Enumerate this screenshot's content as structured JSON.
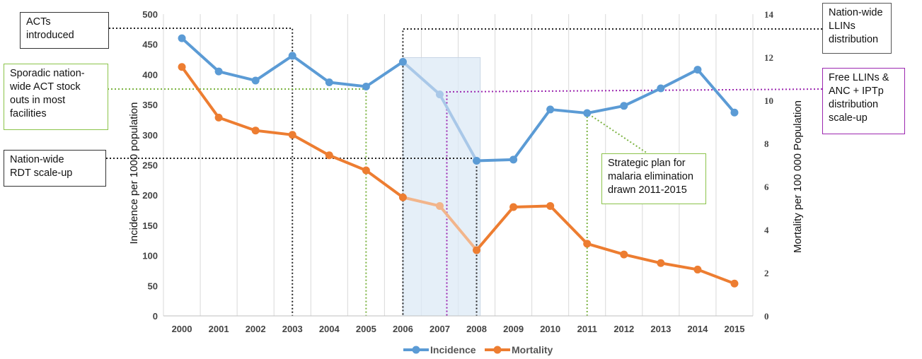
{
  "chart_data": {
    "type": "line",
    "categories": [
      "2000",
      "2001",
      "2002",
      "2003",
      "2004",
      "2005",
      "2006",
      "2007",
      "2008",
      "2009",
      "2010",
      "2011",
      "2012",
      "2013",
      "2014",
      "2015"
    ],
    "series": [
      {
        "name": "Incidence",
        "axis": "left",
        "color": "#5b9bd5",
        "values": [
          460,
          405,
          390,
          431,
          387,
          380,
          421,
          367,
          257,
          259,
          342,
          336,
          348,
          377,
          408,
          337
        ]
      },
      {
        "name": "Mortality",
        "axis": "right",
        "color": "#ed7d31",
        "values": [
          11.55,
          9.2,
          8.6,
          8.4,
          7.45,
          6.75,
          5.5,
          5.1,
          3.05,
          5.05,
          5.1,
          3.35,
          2.85,
          2.45,
          2.15,
          1.5
        ]
      }
    ],
    "ylabel": "Incidence per 1000 population",
    "y2label": "Mortality per 100 000  Population",
    "ylim": [
      0,
      500
    ],
    "y2lim": [
      0,
      14
    ],
    "yticks": [
      "0",
      "50",
      "100",
      "150",
      "200",
      "250",
      "300",
      "350",
      "400",
      "450",
      "500"
    ],
    "y2ticks": [
      "0",
      "2",
      "4",
      "6",
      "8",
      "10",
      "12",
      "14"
    ],
    "grid": "vertical",
    "legend": "bottom",
    "highlight_range": [
      "2006",
      "2008"
    ],
    "annotations": {
      "acts": [
        "ACTs",
        "introduced"
      ],
      "stock": [
        "Sporadic nation-",
        "wide ACT stock",
        "outs in most",
        "facilities"
      ],
      "rdt": [
        "Nation-wide",
        "RDT scale-up"
      ],
      "llins": [
        "Nation-wide",
        "LLINs",
        "distribution"
      ],
      "free": [
        "Free LLINs &",
        "ANC + IPTp",
        "distribution",
        "scale-up"
      ],
      "plan": [
        "Strategic plan for",
        "malaria elimination",
        "drawn 2011-2015"
      ]
    }
  },
  "colors": {
    "incidence": "#5b9bd5",
    "mortality": "#ed7d31",
    "highlight": "#dce9f6",
    "black_dots": "#222222",
    "green_dots": "#7cb342",
    "purple_dots": "#9c27b0"
  }
}
